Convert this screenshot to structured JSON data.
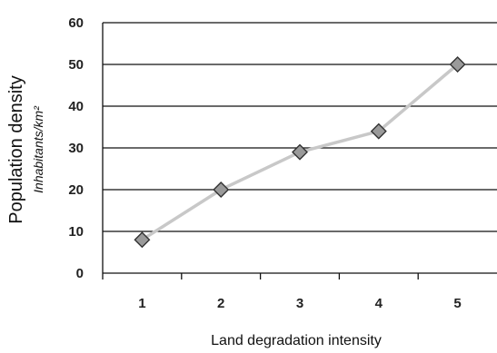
{
  "chart_data": {
    "type": "line",
    "title": "",
    "xlabel": "Land degradation intensity",
    "ylabel": "Population density",
    "ylabel_unit": "Inhabitants/km²",
    "categories": [
      "1",
      "2",
      "3",
      "4",
      "5"
    ],
    "series": [
      {
        "values": [
          8,
          20,
          29,
          34,
          50
        ]
      }
    ],
    "ylim": [
      0,
      60
    ],
    "yticks": [
      "0",
      "10",
      "20",
      "30",
      "40",
      "50",
      "60"
    ],
    "grid": true,
    "legend": "none",
    "line_color": "#c8c8c8",
    "marker_color": "#9a9a9a"
  }
}
